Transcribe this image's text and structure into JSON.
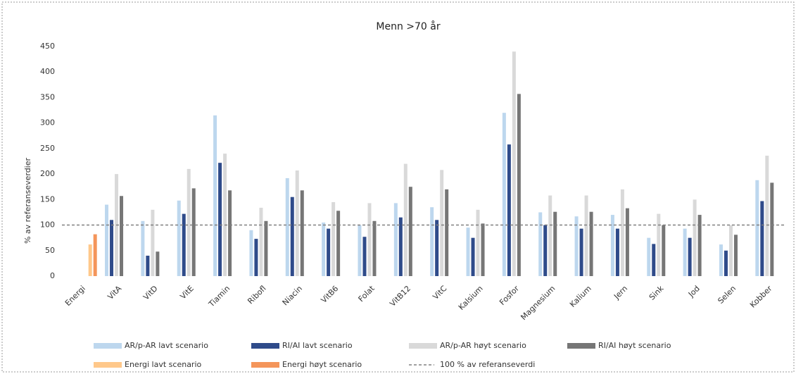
{
  "chart_data": {
    "type": "bar",
    "title": "Menn >70 år",
    "y_label": "% av referanseverdier",
    "categories": [
      "Energi",
      "VitA",
      "VitD",
      "VitE",
      "Tiamin",
      "Ribofl",
      "Niacin",
      "VitB6",
      "Folat",
      "VitB12",
      "VitC",
      "Kalsium",
      "Fosfor",
      "Magnesium",
      "Kalium",
      "Jern",
      "Sink",
      "Jod",
      "Selen",
      "Kobber"
    ],
    "series": [
      {
        "name": "AR/p-AR lavt scenario",
        "color": "#bdd7ee",
        "values": [
          null,
          140,
          108,
          148,
          315,
          90,
          192,
          105,
          100,
          143,
          135,
          95,
          320,
          125,
          117,
          120,
          75,
          93,
          62,
          188
        ]
      },
      {
        "name": "RI/AI lavt scenario",
        "color": "#2f4b8a",
        "values": [
          null,
          110,
          40,
          122,
          222,
          73,
          155,
          93,
          77,
          115,
          110,
          75,
          258,
          100,
          93,
          93,
          63,
          75,
          50,
          147
        ]
      },
      {
        "name": "AR/p-AR høyt scenario",
        "color": "#d9d9d9",
        "values": [
          null,
          200,
          130,
          210,
          240,
          134,
          207,
          145,
          143,
          220,
          208,
          130,
          440,
          158,
          158,
          170,
          122,
          150,
          100,
          236
        ]
      },
      {
        "name": "RI/AI høyt scenario",
        "color": "#767676",
        "values": [
          null,
          157,
          48,
          172,
          168,
          108,
          168,
          128,
          108,
          175,
          170,
          103,
          357,
          126,
          126,
          133,
          100,
          120,
          81,
          183
        ]
      },
      {
        "name": "Energi lavt scenario",
        "color": "#ffc88a",
        "values": [
          62,
          null,
          null,
          null,
          null,
          null,
          null,
          null,
          null,
          null,
          null,
          null,
          null,
          null,
          null,
          null,
          null,
          null,
          null,
          null
        ]
      },
      {
        "name": "Energi høyt scenario",
        "color": "#f4955a",
        "values": [
          82,
          null,
          null,
          null,
          null,
          null,
          null,
          null,
          null,
          null,
          null,
          null,
          null,
          null,
          null,
          null,
          null,
          null,
          null,
          null
        ]
      }
    ],
    "reference_line": {
      "name": "100 % av referanseverdi",
      "value": 100,
      "color": "#808080"
    },
    "ylim": [
      0,
      450
    ],
    "yticks": [
      0,
      50,
      100,
      150,
      200,
      250,
      300,
      350,
      400,
      450
    ],
    "grid": false
  }
}
